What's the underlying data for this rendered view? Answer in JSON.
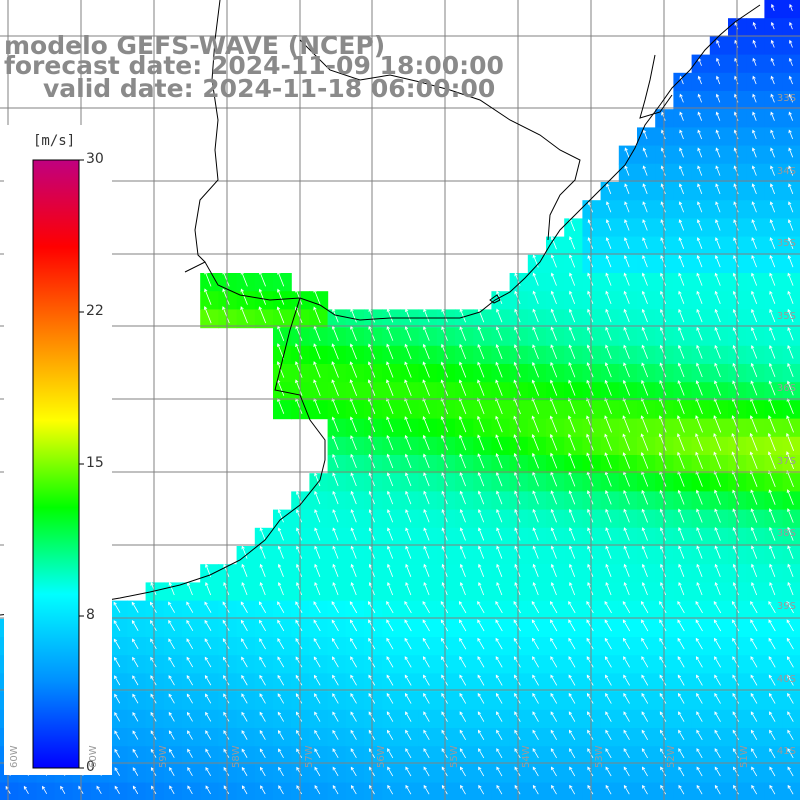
{
  "title": {
    "line1": "modelo GEFS-WAVE (NCEP)",
    "line2": "forecast date: 2024-11-09 18:00:00",
    "line3": "valid date: 2024-11-18 06:00:00"
  },
  "colorbar": {
    "unit": "[m/s]",
    "ticks": [
      "30",
      "22",
      "15",
      "8",
      "0"
    ],
    "range": [
      0,
      30
    ],
    "colors": [
      "#0000ff",
      "#0090ff",
      "#00ffff",
      "#00ff00",
      "#ffff00",
      "#ff8000",
      "#ff0000",
      "#c00080"
    ]
  },
  "lat_labels": [
    "33S",
    "34S",
    "35S",
    "36S",
    "37S",
    "38S",
    "39S",
    "40S",
    "41S"
  ],
  "lon_labels": [
    "60W",
    "59W",
    "58W",
    "57W",
    "56W",
    "55W",
    "54W",
    "53W",
    "52W",
    "51W"
  ],
  "colors": {
    "land": "#ffffff",
    "coast": "#000000",
    "grid": "#808080",
    "arrow": "#ffffff"
  }
}
